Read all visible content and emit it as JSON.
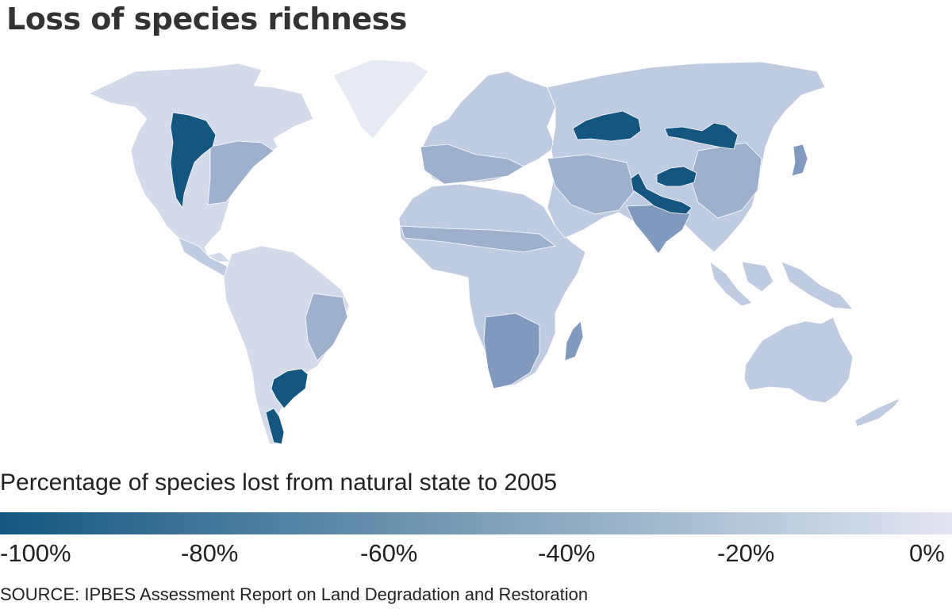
{
  "title": "Loss of species richness",
  "legend": {
    "label": "Percentage of species lost from natural state to 2005",
    "color_low": "#14567f",
    "color_high": "#e3e6f1",
    "ticks": [
      "-100%",
      "-80%",
      "-60%",
      "-40%",
      "-20%",
      "0%"
    ]
  },
  "source": "SOURCE: IPBES Assessment Report on Land Degradation and Restoration",
  "map": {
    "type": "choropleth-world",
    "colors": {
      "loss_100": "#14567f",
      "loss_70": "#5f82a8",
      "loss_50": "#8199bd",
      "loss_35": "#9fb0cd",
      "loss_20": "#bfcbe0",
      "loss_10": "#d3daea",
      "loss_0": "#e6eaf3",
      "coast": "#ffffff"
    },
    "regions": [
      {
        "name": "north-america",
        "fill": "loss_10"
      },
      {
        "name": "great-plains",
        "fill": "loss_100"
      },
      {
        "name": "south-america",
        "fill": "loss_10"
      },
      {
        "name": "pampas",
        "fill": "loss_100"
      },
      {
        "name": "patagonia",
        "fill": "loss_100"
      },
      {
        "name": "europe",
        "fill": "loss_20"
      },
      {
        "name": "africa",
        "fill": "loss_20"
      },
      {
        "name": "southern-africa",
        "fill": "loss_50"
      },
      {
        "name": "kazakh-steppe",
        "fill": "loss_100"
      },
      {
        "name": "mongolian-steppe",
        "fill": "loss_100"
      },
      {
        "name": "tibetan-plateau",
        "fill": "loss_100"
      },
      {
        "name": "indus-ganges",
        "fill": "loss_100"
      },
      {
        "name": "australia",
        "fill": "loss_20"
      }
    ]
  }
}
